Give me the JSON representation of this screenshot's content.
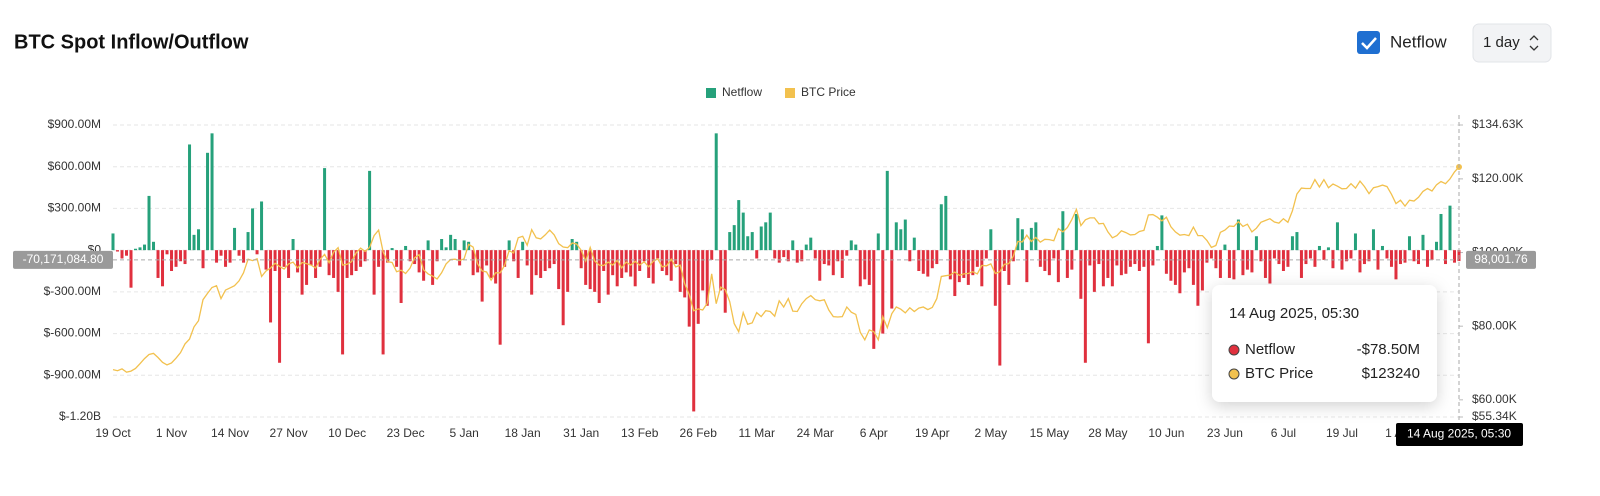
{
  "chart_data": {
    "type": "bar",
    "title": "BTC Spot Inflow/Outflow",
    "controls": {
      "checkbox_label": "Netflow",
      "checked": true,
      "interval": "1 day"
    },
    "legend": "top",
    "grid": true,
    "categories": [
      "19 Oct",
      null,
      null,
      null,
      null,
      null,
      null,
      null,
      null,
      null,
      null,
      null,
      null,
      "1 Nov",
      null,
      null,
      null,
      null,
      null,
      null,
      null,
      null,
      null,
      null,
      null,
      null,
      "14 Nov",
      null,
      null,
      null,
      null,
      null,
      null,
      null,
      null,
      null,
      null,
      null,
      null,
      "27 Nov",
      null,
      null,
      null,
      null,
      null,
      null,
      null,
      null,
      null,
      null,
      null,
      null,
      "10 Dec",
      null,
      null,
      null,
      null,
      null,
      null,
      null,
      null,
      null,
      null,
      null,
      null,
      "23 Dec",
      null,
      null,
      null,
      null,
      null,
      null,
      null,
      null,
      null,
      null,
      null,
      null,
      "5 Jan",
      null,
      null,
      null,
      null,
      null,
      null,
      null,
      null,
      null,
      null,
      null,
      null,
      "18 Jan",
      null,
      null,
      null,
      null,
      null,
      null,
      null,
      null,
      null,
      null,
      null,
      null,
      "31 Jan",
      null,
      null,
      null,
      null,
      null,
      null,
      null,
      null,
      null,
      null,
      null,
      null,
      "13 Feb",
      null,
      null,
      null,
      null,
      null,
      null,
      null,
      null,
      null,
      null,
      null,
      null,
      "26 Feb",
      null,
      null,
      null,
      null,
      null,
      null,
      null,
      null,
      null,
      null,
      null,
      null,
      "11 Mar",
      null,
      null,
      null,
      null,
      null,
      null,
      null,
      null,
      null,
      null,
      null,
      null,
      "24 Mar",
      null,
      null,
      null,
      null,
      null,
      null,
      null,
      null,
      null,
      null,
      null,
      null,
      "6 Apr",
      null,
      null,
      null,
      null,
      null,
      null,
      null,
      null,
      null,
      null,
      null,
      null,
      "19 Apr",
      null,
      null,
      null,
      null,
      null,
      null,
      null,
      null,
      null,
      null,
      null,
      null,
      "2 May",
      null,
      null,
      null,
      null,
      null,
      null,
      null,
      null,
      null,
      null,
      null,
      null,
      "15 May",
      null,
      null,
      null,
      null,
      null,
      null,
      null,
      null,
      null,
      null,
      null,
      null,
      "28 May",
      null,
      null,
      null,
      null,
      null,
      null,
      null,
      null,
      null,
      null,
      null,
      null,
      "10 Jun",
      null,
      null,
      null,
      null,
      null,
      null,
      null,
      null,
      null,
      null,
      null,
      null,
      "23 Jun",
      null,
      null,
      null,
      null,
      null,
      null,
      null,
      null,
      null,
      null,
      null,
      null,
      "6 Jul",
      null,
      null,
      null,
      null,
      null,
      null,
      null,
      null,
      null,
      null,
      null,
      null,
      "19 Jul",
      null,
      null,
      null,
      null,
      null,
      null,
      null,
      null,
      null,
      null,
      null,
      null,
      "1 Aug",
      null,
      null,
      null,
      null,
      null,
      null,
      null,
      null,
      null,
      null,
      null,
      null,
      null
    ],
    "series": [
      {
        "name": "Netflow",
        "color": "#26a17b",
        "negative_color": "#e0303e",
        "values": [
          120,
          -10,
          -60,
          -40,
          -270,
          10,
          20,
          40,
          390,
          60,
          -200,
          -260,
          -30,
          -150,
          -120,
          -80,
          -100,
          760,
          110,
          150,
          -130,
          700,
          840,
          -90,
          -40,
          -120,
          -90,
          160,
          -40,
          -90,
          130,
          300,
          -30,
          350,
          -140,
          -520,
          -150,
          -810,
          -120,
          -200,
          80,
          -160,
          -320,
          -250,
          -110,
          -200,
          -120,
          590,
          -180,
          -200,
          -300,
          -750,
          -200,
          -180,
          -150,
          -120,
          -80,
          570,
          -320,
          -120,
          -750,
          -90,
          15,
          -120,
          -380,
          30,
          -80,
          -100,
          -160,
          -220,
          70,
          -250,
          -80,
          80,
          20,
          110,
          80,
          -110,
          70,
          60,
          -180,
          -160,
          -370,
          -110,
          -200,
          -240,
          -680,
          -120,
          70,
          -80,
          -200,
          60,
          -110,
          -320,
          -180,
          -200,
          -150,
          -130,
          -100,
          -280,
          -540,
          -300,
          80,
          60,
          -130,
          -250,
          -280,
          -300,
          -380,
          -150,
          -320,
          -180,
          -260,
          -200,
          -160,
          -190,
          -260,
          -150,
          -80,
          -200,
          -240,
          -60,
          -150,
          -180,
          -220,
          -100,
          -300,
          -340,
          -550,
          -1160,
          -530,
          -290,
          -400,
          -70,
          840,
          -290,
          -450,
          130,
          180,
          360,
          270,
          100,
          130,
          -60,
          170,
          200,
          270,
          -60,
          -90,
          -50,
          -80,
          70,
          -90,
          -80,
          40,
          90,
          -60,
          -220,
          -100,
          -110,
          -180,
          -80,
          -200,
          -40,
          70,
          40,
          -260,
          -210,
          -250,
          -710,
          120,
          -600,
          570,
          -420,
          200,
          150,
          220,
          -80,
          90,
          -150,
          -170,
          -190,
          -130,
          -100,
          330,
          390,
          -210,
          -330,
          -230,
          -200,
          -250,
          -180,
          -120,
          -260,
          -60,
          150,
          -400,
          -830,
          -150,
          -250,
          -80,
          230,
          150,
          -230,
          160,
          200,
          -120,
          -150,
          -180,
          -60,
          -230,
          280,
          -200,
          -140,
          260,
          -350,
          -810,
          -110,
          -300,
          -100,
          -260,
          -200,
          -260,
          -110,
          -180,
          -170,
          -120,
          -100,
          -150,
          -120,
          -670,
          -110,
          30,
          250,
          -170,
          -220,
          -250,
          -310,
          -160,
          -130,
          -250,
          -400,
          -290,
          -90,
          -60,
          -130,
          -200,
          40,
          -200,
          -210,
          220,
          -180,
          -140,
          -160,
          100,
          -80,
          -200,
          -240,
          -60,
          -100,
          -150,
          -120,
          100,
          130,
          -200,
          -100,
          -60,
          -120,
          30,
          -70,
          20,
          -130,
          200,
          -140,
          -80,
          -60,
          120,
          -160,
          -100,
          -80,
          150,
          -140,
          30,
          -60,
          -120,
          -210,
          -100,
          -90,
          100,
          -80,
          -100,
          110,
          -120,
          -70,
          60,
          260,
          -100,
          320,
          -90,
          -78.5
        ]
      },
      {
        "name": "BTC Price",
        "type": "line",
        "axis": "y2",
        "color": "#f2c14e",
        "values": [
          68200,
          67900,
          68400,
          67500,
          67800,
          68500,
          69800,
          71200,
          72300,
          72600,
          71500,
          70200,
          69500,
          70000,
          71300,
          72800,
          75200,
          76500,
          79800,
          81500,
          87200,
          88900,
          90500,
          91000,
          87500,
          89800,
          90400,
          91000,
          92300,
          94500,
          98200,
          97800,
          98300,
          93500,
          95000,
          95800,
          97100,
          96200,
          95500,
          96900,
          97400,
          95800,
          97300,
          97000,
          96600,
          95800,
          98200,
          99500,
          97200,
          100100,
          101300,
          96600,
          96800,
          97500,
          99900,
          101200,
          100300,
          101400,
          104600,
          106100,
          100200,
          97500,
          97300,
          94800,
          95200,
          94300,
          95800,
          98600,
          99400,
          95300,
          94200,
          93600,
          92800,
          94500,
          96900,
          98100,
          98200,
          97800,
          98300,
          102200,
          101500,
          96900,
          95000,
          94700,
          92500,
          94500,
          94500,
          96500,
          100500,
          99900,
          104000,
          104400,
          102000,
          106200,
          104000,
          103700,
          104800,
          106100,
          104800,
          102400,
          101500,
          101300,
          102600,
          102300,
          100600,
          97700,
          101400,
          97700,
          96600,
          96500,
          97400,
          96600,
          97900,
          95800,
          97400,
          96600,
          97600,
          96600,
          97500,
          96100,
          97600,
          98300,
          96100,
          96400,
          98200,
          96100,
          96600,
          91500,
          88600,
          84200,
          84700,
          84400,
          86200,
          94200,
          86100,
          90600,
          89900,
          86700,
          80700,
          78500,
          83700,
          80500,
          80900,
          83700,
          82600,
          84200,
          84000,
          82700,
          86900,
          85200,
          87500,
          84100,
          84000,
          86100,
          87500,
          88300,
          87200,
          86900,
          87200,
          84400,
          82600,
          82500,
          82600,
          85200,
          83800,
          83200,
          78300,
          76300,
          79000,
          78500,
          76300,
          82600,
          79600,
          83400,
          85200,
          84600,
          83600,
          85000,
          84000,
          84900,
          85200,
          84500,
          85100,
          87500,
          93500,
          93700,
          93900,
          94700,
          93800,
          94200,
          94300,
          94800,
          94200,
          96500,
          96400,
          96900,
          94300,
          94800,
          96800,
          97000,
          99000,
          103000,
          102900,
          104700,
          103000,
          104100,
          102800,
          103600,
          103500,
          103200,
          106500,
          105600,
          106800,
          109000,
          111700,
          107300,
          108900,
          109400,
          109400,
          107800,
          107900,
          105600,
          104000,
          104600,
          105900,
          105400,
          104800,
          104900,
          105700,
          106000,
          110200,
          110300,
          109600,
          108600,
          109600,
          107000,
          105600,
          104700,
          104900,
          104600,
          106900,
          104600,
          104600,
          103300,
          101400,
          101900,
          105500,
          106100,
          107200,
          107100,
          108400,
          107100,
          107700,
          105600,
          106600,
          108200,
          108700,
          109200,
          108300,
          108000,
          109200,
          108200,
          111300,
          115900,
          117500,
          117400,
          117400,
          119800,
          117800,
          119800,
          117600,
          118600,
          118000,
          117300,
          117400,
          118700,
          117500,
          119400,
          117900,
          116000,
          117600,
          117900,
          118300,
          117900,
          115800,
          113300,
          114200,
          112600,
          114200,
          114000,
          115000,
          116600,
          117400,
          116700,
          118400,
          119300,
          118700,
          120000,
          121900,
          123240
        ]
      }
    ],
    "ylim": [
      -1200,
      900
    ],
    "yticks": [
      {
        "value": 900,
        "label": "$900.00M"
      },
      {
        "value": 600,
        "label": "$600.00M"
      },
      {
        "value": 300,
        "label": "$300.00M"
      },
      {
        "value": 0,
        "label": "$0"
      },
      {
        "value": -300,
        "label": "$-300.00M"
      },
      {
        "value": -600,
        "label": "$-600.00M"
      },
      {
        "value": -900,
        "label": "$-900.00M"
      },
      {
        "value": -1200,
        "label": "$-1.20B"
      }
    ],
    "y2lim": [
      55340,
      134630
    ],
    "y2ticks": [
      {
        "value": 134630,
        "label": "$134.63K"
      },
      {
        "value": 120000,
        "label": "$120.00K"
      },
      {
        "value": 100000,
        "label": "$100.00K"
      },
      {
        "value": 80000,
        "label": "$80.00K"
      },
      {
        "value": 60000,
        "label": "$60.00K"
      },
      {
        "value": 55340,
        "label": "$55.34K"
      }
    ],
    "crosshair": {
      "y": {
        "value": -70.1710848,
        "label": "-70,171,084.80"
      },
      "y2": {
        "value": 98001.76,
        "label": "98,001.76"
      },
      "x_label": "14 Aug 2025, 05:30"
    },
    "tooltip": {
      "title": "14 Aug 2025, 05:30",
      "labels": [
        "-$78.50M",
        "$123240"
      ]
    }
  }
}
